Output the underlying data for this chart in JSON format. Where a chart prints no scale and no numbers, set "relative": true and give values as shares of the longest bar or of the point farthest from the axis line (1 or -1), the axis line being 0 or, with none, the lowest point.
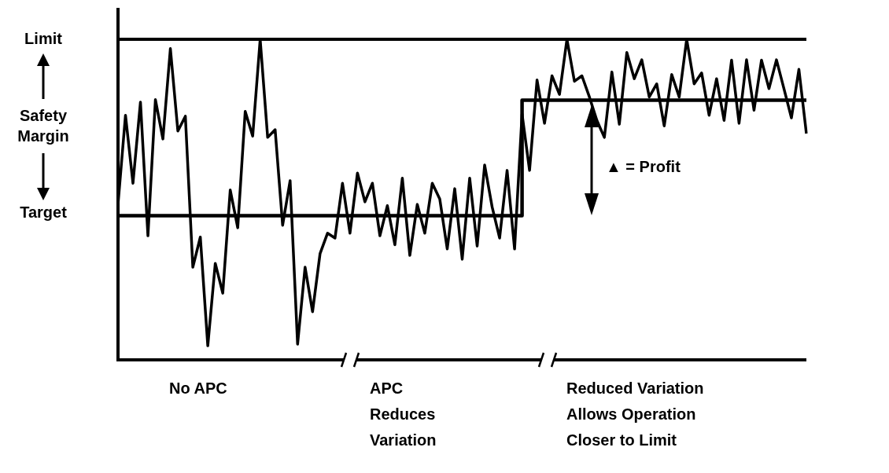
{
  "chart_data": {
    "type": "line",
    "relative": true,
    "marker": "none",
    "categories": [
      null,
      null,
      null,
      null,
      null,
      null,
      null,
      null,
      null,
      null,
      null,
      null,
      null,
      null,
      null,
      null,
      null,
      null,
      null,
      null,
      null,
      null,
      null,
      null,
      null,
      null,
      null,
      null,
      null,
      null,
      null,
      null,
      null,
      null,
      null,
      null,
      null,
      null,
      null,
      null,
      null,
      null,
      null,
      null,
      null,
      null,
      null,
      null,
      null,
      null,
      null,
      null,
      null,
      null,
      null,
      null,
      null,
      null,
      null,
      null,
      null,
      null,
      null,
      null,
      null,
      null,
      null,
      null,
      null,
      null,
      null,
      null,
      null,
      null,
      null,
      null,
      null,
      null,
      null,
      null,
      null,
      null,
      null,
      null,
      null,
      null,
      null,
      null,
      null,
      null,
      null,
      null,
      null
    ],
    "series": [
      {
        "type": "line",
        "color": "#000000",
        "values": [
          0.485,
          0.763,
          0.551,
          0.804,
          0.387,
          0.812,
          0.689,
          0.971,
          0.714,
          0.76,
          0.289,
          0.383,
          0.044,
          0.301,
          0.208,
          0.53,
          0.412,
          0.775,
          0.698,
          1,
          0.694,
          0.718,
          0.42,
          0.559,
          0.049,
          0.289,
          0.15,
          0.331,
          0.395,
          0.38,
          0.551,
          0.395,
          0.583,
          0.493,
          0.551,
          0.387,
          0.481,
          0.359,
          0.567,
          0.326,
          0.485,
          0.395,
          0.551,
          0.502,
          0.346,
          0.534,
          0.314,
          0.567,
          0.355,
          0.608,
          0.477,
          0.38,
          0.591,
          0.346,
          0.767,
          0.591,
          0.873,
          0.738,
          0.886,
          0.828,
          1,
          0.869,
          0.886,
          0.82,
          0.747,
          0.694,
          0.898,
          0.735,
          0.959,
          0.877,
          0.936,
          0.82,
          0.861,
          0.73,
          0.89,
          0.82,
          1,
          0.861,
          0.895,
          0.763,
          0.877,
          0.747,
          0.935,
          0.738,
          0.936,
          0.779,
          0.935,
          0.846,
          0.936,
          0.846,
          0.755,
          0.906,
          0.706
        ]
      },
      {
        "type": "step",
        "color": "#000000",
        "values": [
          0.45,
          0.45,
          0.45,
          0.45,
          0.45,
          0.45,
          0.45,
          0.45,
          0.45,
          0.45,
          0.45,
          0.45,
          0.45,
          0.45,
          0.45,
          0.45,
          0.45,
          0.45,
          0.45,
          0.45,
          0.45,
          0.45,
          0.45,
          0.45,
          0.45,
          0.45,
          0.45,
          0.45,
          0.45,
          0.45,
          0.45,
          0.45,
          0.45,
          0.45,
          0.45,
          0.45,
          0.45,
          0.45,
          0.45,
          0.45,
          0.45,
          0.45,
          0.45,
          0.45,
          0.45,
          0.45,
          0.45,
          0.45,
          0.45,
          0.45,
          0.45,
          0.45,
          0.45,
          0.45,
          0.81,
          0.81,
          0.81,
          0.81,
          0.81,
          0.81,
          0.81,
          0.81,
          0.81,
          0.81,
          0.81,
          0.81,
          0.81,
          0.81,
          0.81,
          0.81,
          0.81,
          0.81,
          0.81,
          0.81,
          0.81,
          0.81,
          0.81,
          0.81,
          0.81,
          0.81,
          0.81,
          0.81,
          0.81,
          0.81,
          0.81,
          0.81,
          0.81,
          0.81,
          0.81,
          0.81,
          0.81,
          0.81,
          0.81
        ]
      }
    ],
    "ref_lines": [
      {
        "axis": "y",
        "value": 1,
        "label": "Limit",
        "color": "#000000"
      }
    ],
    "annotations": [
      "Safety Margin",
      "Target",
      "▲ = Profit",
      "No APC",
      "APC\nReduces\nVariation",
      "Reduced Variation\nAllows Operation\nCloser to Limit"
    ]
  }
}
